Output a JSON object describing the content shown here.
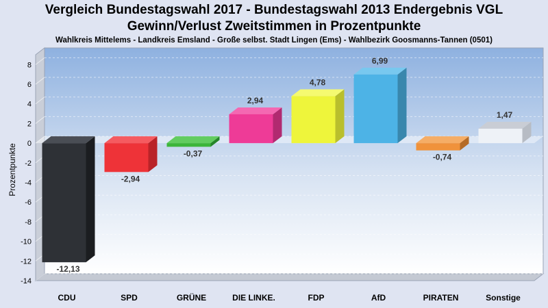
{
  "header": {
    "title_line1": "Vergleich Bundestagswahl 2017 - Bundestagswahl 2013 Endergebnis VGL",
    "title_line2": "Gewinn/Verlust Zweitstimmen in Prozentpunkte",
    "subtitle": "Wahlkreis Mittelems - Landkreis Emsland - Große selbst. Stadt Lingen (Ems) - Wahlbezirk Goosmanns-Tannen (0501)"
  },
  "chart_data": {
    "type": "bar",
    "title": "Vergleich Bundestagswahl 2017 - Bundestagswahl 2013 Endergebnis VGL",
    "subtitle": "Gewinn/Verlust Zweitstimmen in Prozentpunkte",
    "xlabel": "",
    "ylabel": "Prozentpunkte",
    "ylim": [
      -14,
      9
    ],
    "yticks": [
      8,
      6,
      4,
      2,
      0,
      -2,
      -4,
      -6,
      -8,
      -10,
      -12,
      -14
    ],
    "grid": true,
    "categories": [
      "CDU",
      "SPD",
      "GRÜNE",
      "DIE LINKE.",
      "FDP",
      "AfD",
      "PIRATEN",
      "Sonstige"
    ],
    "values": [
      -12.13,
      -2.94,
      -0.37,
      2.94,
      4.78,
      6.99,
      -0.74,
      1.47
    ],
    "value_labels": [
      "-12,13",
      "-2,94",
      "-0,37",
      "2,94",
      "4,78",
      "6,99",
      "-0,74",
      "1,47"
    ],
    "colors": [
      "#2e3136",
      "#ee3338",
      "#3cb53a",
      "#ee3b97",
      "#eef53b",
      "#4db3e6",
      "#f0923b",
      "#eef2f7"
    ],
    "side_colors": [
      "#1b1d20",
      "#b92328",
      "#25852a",
      "#b12a70",
      "#b9bf2c",
      "#3987ad",
      "#b56b26",
      "#b7bcc4"
    ],
    "top_colors": [
      "#4a4e55",
      "#f55b60",
      "#62cc60",
      "#f468b2",
      "#f5fa70",
      "#78c8ef",
      "#f5ad66",
      "#c9cdd5"
    ]
  }
}
